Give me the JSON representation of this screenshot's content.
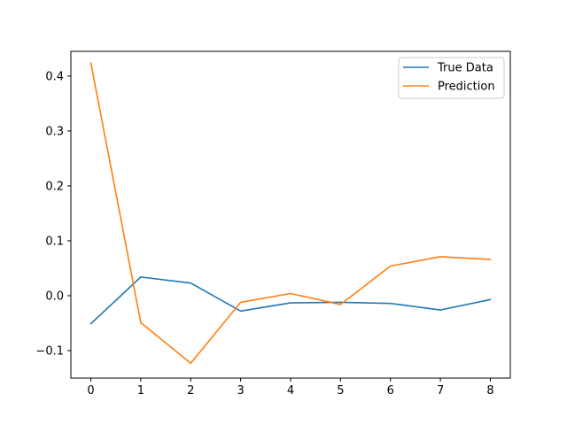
{
  "chart_data": {
    "type": "line",
    "title": "",
    "xlabel": "",
    "ylabel": "",
    "x": [
      0,
      1,
      2,
      3,
      4,
      5,
      6,
      7,
      8
    ],
    "xlim": [
      -0.4,
      8.4
    ],
    "ylim": [
      -0.15,
      0.445
    ],
    "xticks": [
      0,
      1,
      2,
      3,
      4,
      5,
      6,
      7,
      8
    ],
    "yticks": [
      -0.1,
      0.0,
      0.1,
      0.2,
      0.3,
      0.4
    ],
    "ytick_labels": [
      "−0.1",
      "0.0",
      "0.1",
      "0.2",
      "0.3",
      "0.4"
    ],
    "grid": false,
    "legend_position": "upper-right",
    "series": [
      {
        "name": "True Data",
        "color": "#1f77b4",
        "values": [
          -0.051,
          0.034,
          0.023,
          -0.028,
          -0.013,
          -0.012,
          -0.014,
          -0.026,
          -0.007
        ]
      },
      {
        "name": "Prediction",
        "color": "#ff7f0e",
        "values": [
          0.424,
          -0.049,
          -0.123,
          -0.012,
          0.004,
          -0.016,
          0.054,
          0.071,
          0.066
        ]
      }
    ]
  }
}
